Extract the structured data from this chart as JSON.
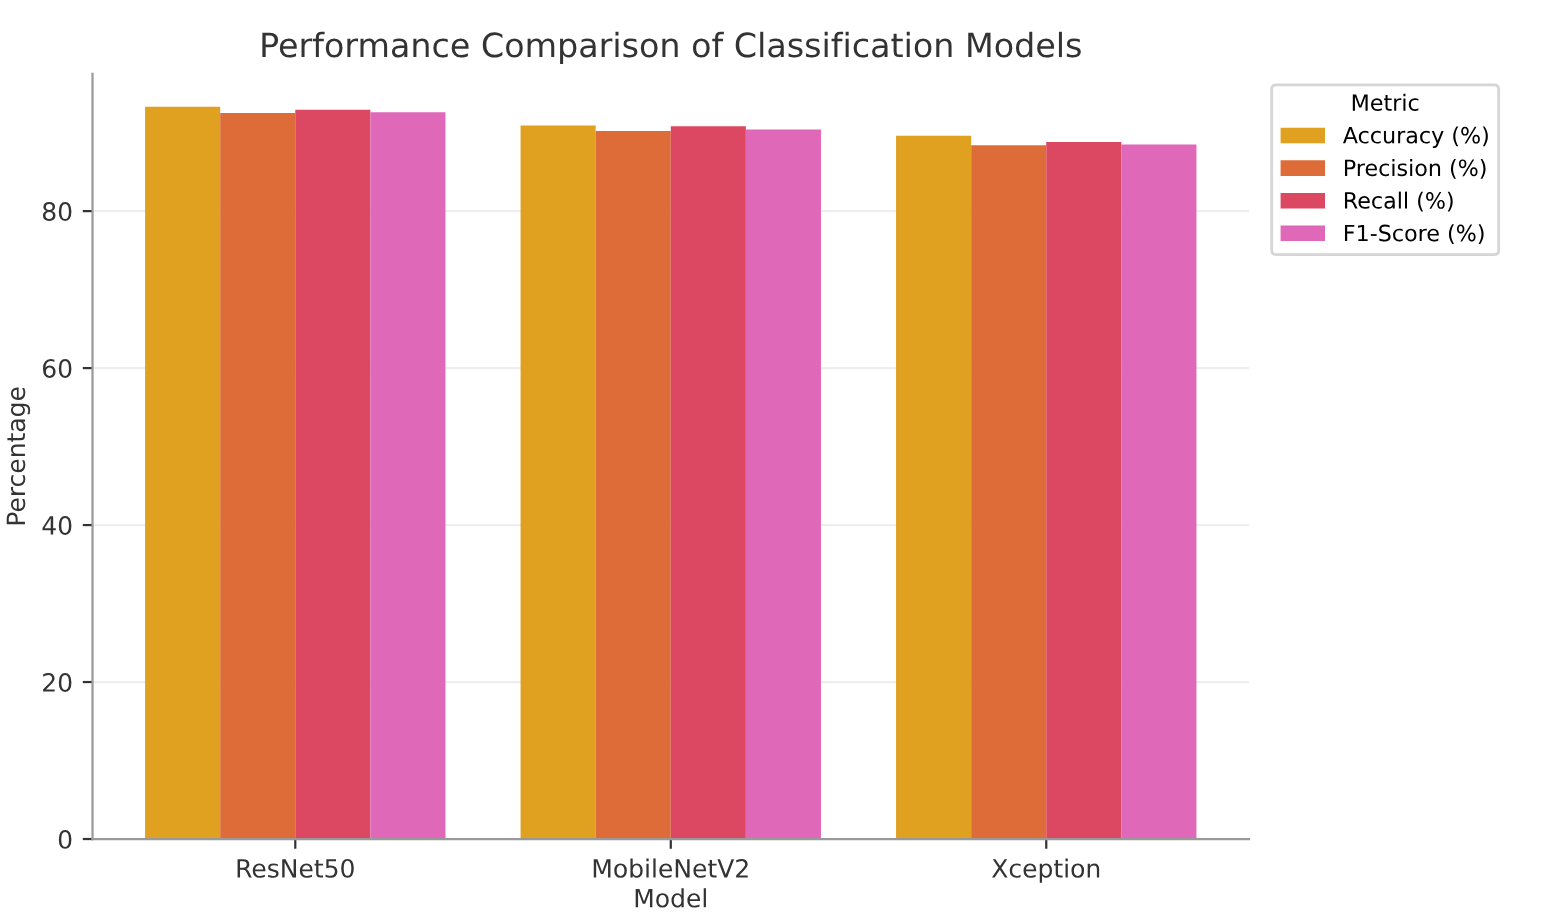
{
  "chart_data": {
    "type": "bar",
    "title": "Performance Comparison of Classification Models",
    "xlabel": "Model",
    "ylabel": "Percentage",
    "legend_title": "Metric",
    "categories": [
      "ResNet50",
      "MobileNetV2",
      "Xception"
    ],
    "series": [
      {
        "name": "Accuracy (%)",
        "color": "#e0a020",
        "values": [
          93.3,
          90.9,
          89.6
        ]
      },
      {
        "name": "Precision (%)",
        "color": "#dd6c38",
        "values": [
          92.5,
          90.2,
          88.4
        ]
      },
      {
        "name": "Recall (%)",
        "color": "#dc4862",
        "values": [
          92.9,
          90.8,
          88.8
        ]
      },
      {
        "name": "F1-Score (%)",
        "color": "#e068b8",
        "values": [
          92.6,
          90.4,
          88.5
        ]
      }
    ],
    "ylim": [
      0,
      97.5
    ],
    "yticks": [
      0,
      20,
      40,
      60,
      80
    ],
    "grid": "y",
    "legend": "top right"
  }
}
